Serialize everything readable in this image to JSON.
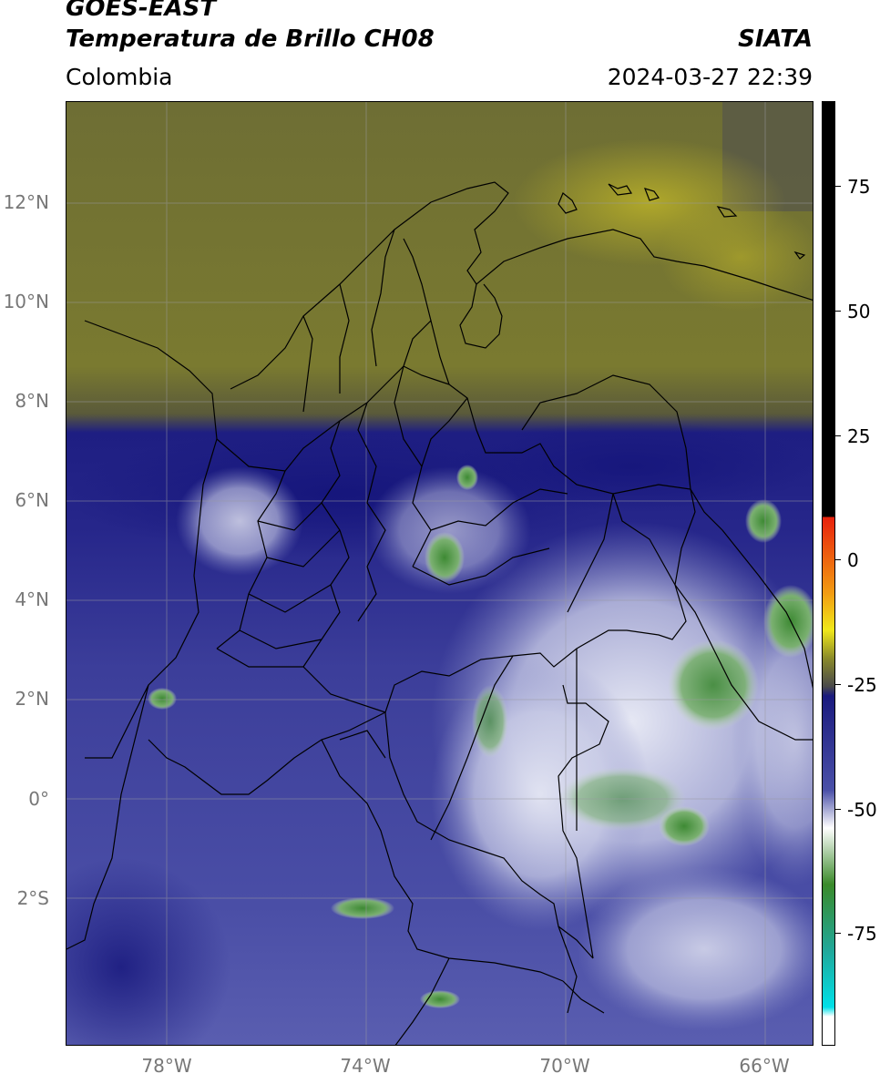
{
  "header": {
    "title_line1": "GOES-EAST",
    "title_line2": "Temperatura de Brillo CH08",
    "brand": "SIATA",
    "region": "Colombia",
    "timestamp": "2024-03-27 22:39"
  },
  "map": {
    "lat_labels": [
      "12°N",
      "10°N",
      "8°N",
      "6°N",
      "4°N",
      "2°N",
      "0°",
      "2°S"
    ],
    "lon_labels": [
      "78°W",
      "74°W",
      "70°W",
      "66°W"
    ]
  },
  "colorbar": {
    "tick_labels": [
      "75",
      "50",
      "25",
      "0",
      "-25",
      "-50",
      "-75"
    ],
    "colors": {
      "black": "#000000",
      "red": "#e8200c",
      "orange": "#f29a12",
      "yellow": "#f0e81a",
      "olive": "#8a8a2a",
      "gray": "#4a4a4a",
      "navy": "#1a1a7e",
      "blue": "#4a50a8",
      "white": "#ffffff",
      "green": "#3a8a2a",
      "teal": "#20a89a",
      "cyan": "#00e0e8"
    }
  }
}
